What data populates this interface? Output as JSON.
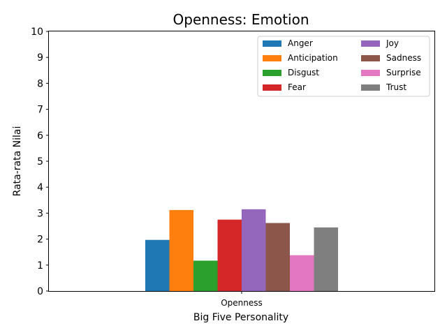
{
  "chart_data": {
    "type": "bar",
    "title": "Openness: Emotion",
    "xlabel": "Big Five Personality",
    "ylabel": "Rata-rata Nilai",
    "categories": [
      "Openness"
    ],
    "ylim": [
      0,
      10
    ],
    "yticks": [
      0,
      1,
      2,
      3,
      4,
      5,
      6,
      7,
      8,
      9,
      10
    ],
    "grid": false,
    "legend": {
      "placement": "top-right",
      "columns": 2
    },
    "series": [
      {
        "name": "Anger",
        "values": [
          1.97
        ],
        "color": "#1f77b4"
      },
      {
        "name": "Anticipation",
        "values": [
          3.12
        ],
        "color": "#ff7f0e"
      },
      {
        "name": "Disgust",
        "values": [
          1.17
        ],
        "color": "#2ca02c"
      },
      {
        "name": "Fear",
        "values": [
          2.75
        ],
        "color": "#d62728"
      },
      {
        "name": "Joy",
        "values": [
          3.15
        ],
        "color": "#9467bd"
      },
      {
        "name": "Sadness",
        "values": [
          2.62
        ],
        "color": "#8c564b"
      },
      {
        "name": "Surprise",
        "values": [
          1.38
        ],
        "color": "#e377c2"
      },
      {
        "name": "Trust",
        "values": [
          2.45
        ],
        "color": "#7f7f7f"
      }
    ]
  }
}
